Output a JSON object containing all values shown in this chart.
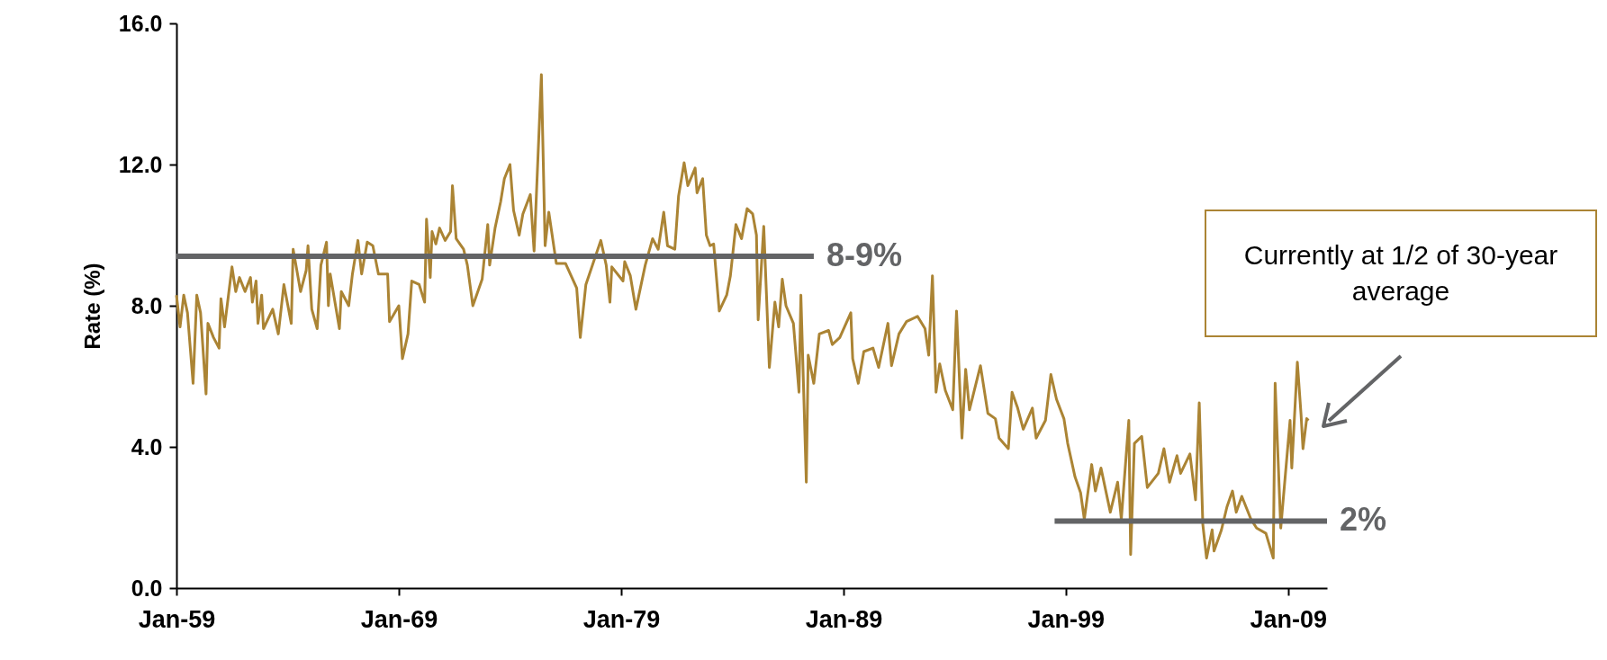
{
  "chart_data": {
    "type": "line",
    "ylabel": "Rate (%)",
    "annotations": [
      "Currently at 1/2 of 30-year average"
    ],
    "xlim": [
      "1959-01",
      "2010-10"
    ],
    "ylim": [
      0,
      16
    ],
    "xticks": [
      {
        "value": "1959-01",
        "label": "Jan-59"
      },
      {
        "value": "1969-01",
        "label": "Jan-69"
      },
      {
        "value": "1979-01",
        "label": "Jan-79"
      },
      {
        "value": "1989-01",
        "label": "Jan-89"
      },
      {
        "value": "1999-01",
        "label": "Jan-99"
      },
      {
        "value": "2009-01",
        "label": "Jan-09"
      }
    ],
    "yticks": [
      {
        "value": 0,
        "label": "0.0"
      },
      {
        "value": 4,
        "label": "4.0"
      },
      {
        "value": 8,
        "label": "8.0"
      },
      {
        "value": 12,
        "label": "12.0"
      },
      {
        "value": 16,
        "label": "16.0"
      }
    ],
    "x": [
      "1959-01",
      "1959-03",
      "1959-05",
      "1959-07",
      "1959-10",
      "1959-12",
      "1960-02",
      "1960-05",
      "1960-06",
      "1960-09",
      "1960-12",
      "1961-01",
      "1961-03",
      "1961-07",
      "1961-09",
      "1961-11",
      "1962-02",
      "1962-05",
      "1962-06",
      "1962-08",
      "1962-09",
      "1962-11",
      "1962-12",
      "1963-05",
      "1963-08",
      "1963-11",
      "1964-03",
      "1964-04",
      "1964-08",
      "1964-11",
      "1964-12",
      "1965-02",
      "1965-05",
      "1965-07",
      "1965-10",
      "1965-11",
      "1965-12",
      "1966-05",
      "1966-06",
      "1966-10",
      "1966-12",
      "1967-03",
      "1967-05",
      "1967-08",
      "1967-11",
      "1968-02",
      "1968-07",
      "1968-08",
      "1969-01",
      "1969-03",
      "1969-06",
      "1969-08",
      "1969-12",
      "1970-03",
      "1970-04",
      "1970-06",
      "1970-07",
      "1970-09",
      "1970-11",
      "1971-02",
      "1971-05",
      "1971-06",
      "1971-08",
      "1971-12",
      "1972-02",
      "1972-05",
      "1972-10",
      "1973-01",
      "1973-02",
      "1973-05",
      "1973-08",
      "1973-10",
      "1974-01",
      "1974-03",
      "1974-06",
      "1974-08",
      "1974-12",
      "1975-02",
      "1975-06",
      "1975-08",
      "1975-10",
      "1976-02",
      "1976-07",
      "1977-01",
      "1977-03",
      "1977-06",
      "1978-02",
      "1978-05",
      "1978-07",
      "1978-08",
      "1979-02",
      "1979-03",
      "1979-06",
      "1979-09",
      "1980-02",
      "1980-06",
      "1980-09",
      "1980-12",
      "1981-02",
      "1981-06",
      "1981-08",
      "1981-11",
      "1982-01",
      "1982-05",
      "1982-06",
      "1982-09",
      "1982-11",
      "1983-01",
      "1983-03",
      "1983-06",
      "1983-10",
      "1983-12",
      "1984-03",
      "1984-06",
      "1984-09",
      "1984-12",
      "1985-02",
      "1985-03",
      "1985-06",
      "1985-09",
      "1985-12",
      "1986-02",
      "1986-04",
      "1986-06",
      "1986-10",
      "1987-01",
      "1987-02",
      "1987-05",
      "1987-06",
      "1987-09",
      "1987-12",
      "1988-05",
      "1988-07",
      "1988-11",
      "1989-05",
      "1989-06",
      "1989-09",
      "1989-12",
      "1990-05",
      "1990-08",
      "1991-01",
      "1991-03",
      "1991-07",
      "1991-11",
      "1992-05",
      "1992-09",
      "1992-11",
      "1993-01",
      "1993-03",
      "1993-05",
      "1993-08",
      "1993-12",
      "1994-02",
      "1994-05",
      "1994-07",
      "1994-09",
      "1995-03",
      "1995-07",
      "1995-11",
      "1996-01",
      "1996-06",
      "1996-08",
      "1996-11",
      "1997-02",
      "1997-07",
      "1997-09",
      "1998-02",
      "1998-05",
      "1998-08",
      "1998-12",
      "1999-02",
      "1999-06",
      "1999-09",
      "1999-11",
      "2000-03",
      "2000-05",
      "2000-08",
      "2001-01",
      "2001-05",
      "2001-07",
      "2001-11",
      "2001-12",
      "2002-02",
      "2002-06",
      "2002-09",
      "2003-03",
      "2003-06",
      "2003-09",
      "2004-01",
      "2004-03",
      "2004-08",
      "2004-11",
      "2005-01",
      "2005-03",
      "2005-05",
      "2005-08",
      "2005-09",
      "2006-01",
      "2006-04",
      "2006-07",
      "2006-09",
      "2006-12",
      "2007-05",
      "2007-08",
      "2008-01",
      "2008-05",
      "2008-06",
      "2008-09",
      "2009-02",
      "2009-03",
      "2009-06",
      "2009-08",
      "2009-09",
      "2009-11",
      "2009-12"
    ],
    "series": [
      {
        "color": "#ab8434",
        "values": [
          8.3,
          7.4,
          8.3,
          7.8,
          5.8,
          8.3,
          7.8,
          5.5,
          7.5,
          7.1,
          6.8,
          8.2,
          7.4,
          9.1,
          8.4,
          8.8,
          8.4,
          8.8,
          8.1,
          8.7,
          7.5,
          8.3,
          7.35,
          7.9,
          7.2,
          8.6,
          7.5,
          9.6,
          8.4,
          9.0,
          9.7,
          7.9,
          7.35,
          9.15,
          9.8,
          8.0,
          8.9,
          7.35,
          8.4,
          8.0,
          8.9,
          9.85,
          8.9,
          9.8,
          9.7,
          8.9,
          8.9,
          7.55,
          8.0,
          6.5,
          7.2,
          8.7,
          8.6,
          8.1,
          10.45,
          8.8,
          10.1,
          9.75,
          10.2,
          9.85,
          10.1,
          11.4,
          9.9,
          9.6,
          9.15,
          8.0,
          8.75,
          10.3,
          9.15,
          10.2,
          10.95,
          11.6,
          12.0,
          10.7,
          10.0,
          10.6,
          11.15,
          9.55,
          14.55,
          9.7,
          10.65,
          9.2,
          9.2,
          8.5,
          7.1,
          8.6,
          9.85,
          9.15,
          8.1,
          9.1,
          8.7,
          9.25,
          8.85,
          7.9,
          9.15,
          9.9,
          9.6,
          10.65,
          9.7,
          9.6,
          11.1,
          12.05,
          11.4,
          11.9,
          11.2,
          11.6,
          10.0,
          9.7,
          9.75,
          7.85,
          8.3,
          8.85,
          10.3,
          9.9,
          10.75,
          10.6,
          10.0,
          7.6,
          10.25,
          6.25,
          8.1,
          7.4,
          8.75,
          8.0,
          7.5,
          5.55,
          8.3,
          3.0,
          6.6,
          5.8,
          7.2,
          7.3,
          6.9,
          7.1,
          7.8,
          6.5,
          5.8,
          6.7,
          6.8,
          6.25,
          7.5,
          6.3,
          7.2,
          7.55,
          7.7,
          7.35,
          6.6,
          8.85,
          5.55,
          6.35,
          5.6,
          5.05,
          7.85,
          4.25,
          6.2,
          5.05,
          6.3,
          4.95,
          4.8,
          4.25,
          3.95,
          5.55,
          5.1,
          4.5,
          5.1,
          4.25,
          4.75,
          6.05,
          5.35,
          4.8,
          4.1,
          3.15,
          2.7,
          1.95,
          3.5,
          2.75,
          3.4,
          2.15,
          3.0,
          1.95,
          4.75,
          0.95,
          4.1,
          4.3,
          2.85,
          3.25,
          3.95,
          3.0,
          3.75,
          3.25,
          3.8,
          2.5,
          5.25,
          1.8,
          0.85,
          1.65,
          1.05,
          1.65,
          2.3,
          2.75,
          2.15,
          2.6,
          1.95,
          1.7,
          1.55,
          0.85,
          5.8,
          1.7,
          4.75,
          3.4,
          6.4,
          4.9,
          3.95,
          4.8,
          4.75
        ]
      },
      {
        "name": "8-9%",
        "color": "#636466",
        "x": [
          "1959-01",
          "1987-09"
        ],
        "values": [
          9.4,
          9.4
        ]
      },
      {
        "name": "2%",
        "color": "#636466",
        "x": [
          "1998-07",
          "2010-10"
        ],
        "values": [
          1.9,
          1.9
        ]
      }
    ]
  }
}
